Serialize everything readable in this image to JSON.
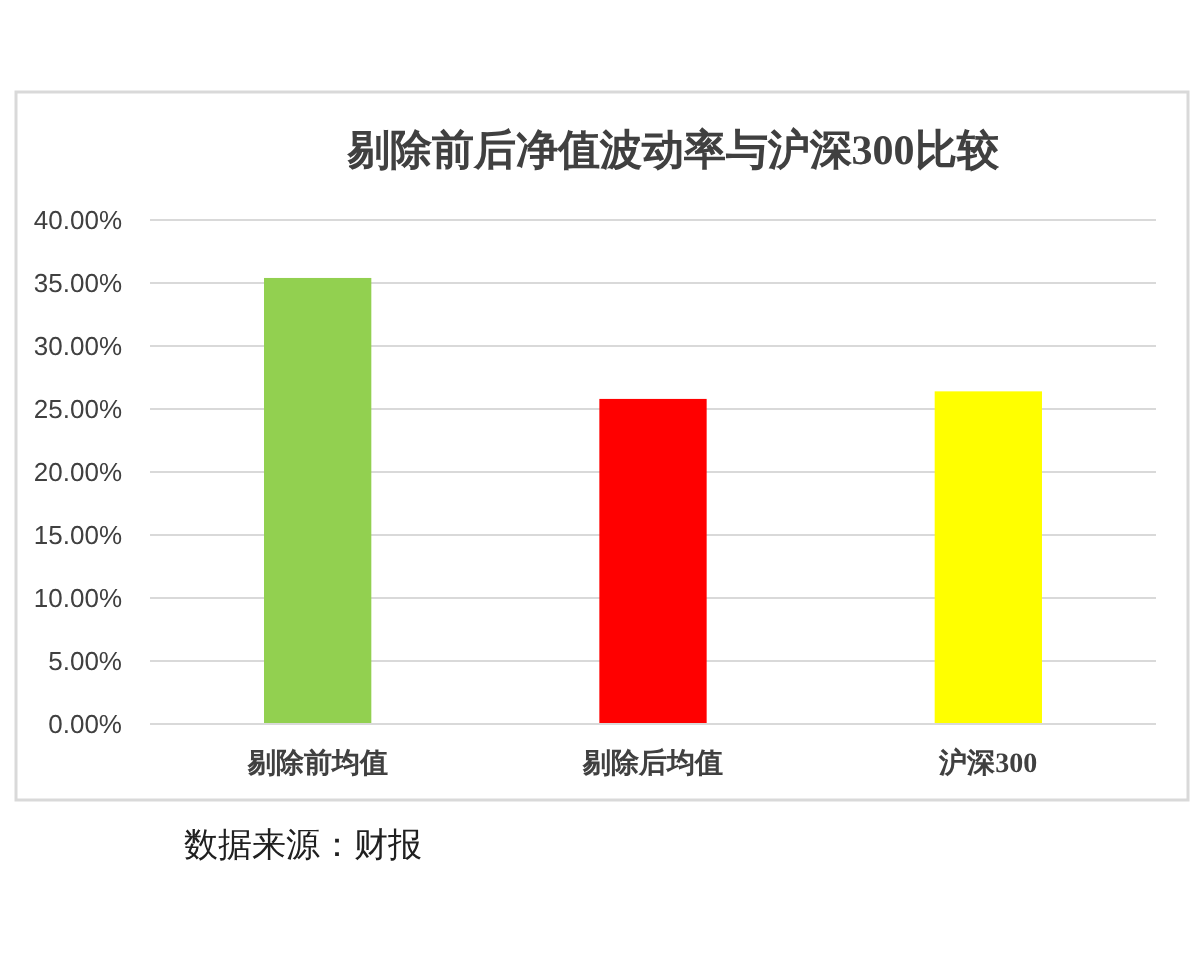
{
  "chart_data": {
    "type": "bar",
    "title": "剔除前后净值波动率与沪深300比较",
    "categories": [
      "剔除前均值",
      "剔除后均值",
      "沪深300"
    ],
    "values": [
      35.4,
      25.8,
      26.4
    ],
    "colors": [
      "#92d050",
      "#ff0000",
      "#ffff00"
    ],
    "ylim": [
      0,
      40
    ],
    "yticks": [
      {
        "value": 0,
        "label": "0.00%"
      },
      {
        "value": 5,
        "label": "5.00%"
      },
      {
        "value": 10,
        "label": "10.00%"
      },
      {
        "value": 15,
        "label": "15.00%"
      },
      {
        "value": 20,
        "label": "20.00%"
      },
      {
        "value": 25,
        "label": "25.00%"
      },
      {
        "value": 30,
        "label": "30.00%"
      },
      {
        "value": 35,
        "label": "35.00%"
      },
      {
        "value": 40,
        "label": "40.00%"
      }
    ],
    "grid": "y",
    "annotations": [
      "数据来源：财报"
    ]
  }
}
